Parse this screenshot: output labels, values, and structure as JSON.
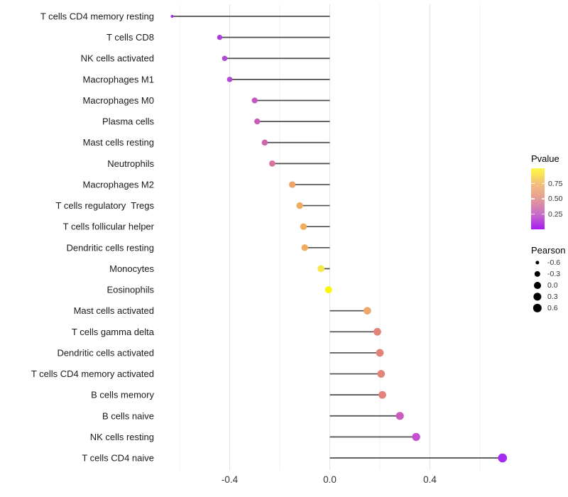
{
  "chart_data": {
    "type": "scatter",
    "variant": "lollipop",
    "title": "",
    "xlabel": "",
    "ylabel": "",
    "x_axis": {
      "tick_labels": [
        "-0.4",
        "0.0",
        "0.4"
      ],
      "tick_values": [
        -0.4,
        0.0,
        0.4
      ],
      "gridline_values": [
        -0.6,
        -0.4,
        -0.2,
        0.0,
        0.2,
        0.4,
        0.6
      ],
      "range": [
        -0.69,
        0.77
      ]
    },
    "points": [
      {
        "label": "T cells CD4 memory resting",
        "pearson": -0.63,
        "color": "#A428EE"
      },
      {
        "label": "T cells CD8",
        "pearson": -0.44,
        "color": "#AC3CDC"
      },
      {
        "label": "NK cells activated",
        "pearson": -0.42,
        "color": "#B246D8"
      },
      {
        "label": "Macrophages M1",
        "pearson": -0.4,
        "color": "#B348D7"
      },
      {
        "label": "Macrophages M0",
        "pearson": -0.3,
        "color": "#C557C0"
      },
      {
        "label": "Plasma cells",
        "pearson": -0.29,
        "color": "#C95CB8"
      },
      {
        "label": "Mast cells resting",
        "pearson": -0.26,
        "color": "#CD64AE"
      },
      {
        "label": "Neutrophils",
        "pearson": -0.23,
        "color": "#D8739F"
      },
      {
        "label": "Macrophages M2",
        "pearson": -0.15,
        "color": "#ECA366"
      },
      {
        "label": "T cells regulatory  Tregs",
        "pearson": -0.12,
        "color": "#EFAA62"
      },
      {
        "label": "T cells follicular helper",
        "pearson": -0.105,
        "color": "#F0AE5D"
      },
      {
        "label": "Dendritic cells resting",
        "pearson": -0.1,
        "color": "#F0AE5D"
      },
      {
        "label": "Monocytes",
        "pearson": -0.035,
        "color": "#F3E74A"
      },
      {
        "label": "Eosinophils",
        "pearson": -0.005,
        "color": "#FBF807"
      },
      {
        "label": "Mast cells activated",
        "pearson": 0.15,
        "color": "#EDA76B"
      },
      {
        "label": "T cells gamma delta",
        "pearson": 0.19,
        "color": "#E18478"
      },
      {
        "label": "Dendritic cells activated",
        "pearson": 0.2,
        "color": "#E28379"
      },
      {
        "label": "T cells CD4 memory activated",
        "pearson": 0.205,
        "color": "#E28379"
      },
      {
        "label": "B cells memory",
        "pearson": 0.21,
        "color": "#E1837B"
      },
      {
        "label": "B cells naive",
        "pearson": 0.28,
        "color": "#CC5BC0"
      },
      {
        "label": "NK cells resting",
        "pearson": 0.345,
        "color": "#C44FD2"
      },
      {
        "label": "T cells CD4 naive",
        "pearson": 0.69,
        "color": "#A32CF0"
      }
    ],
    "legends": {
      "pvalue": {
        "title": "Pvalue",
        "tick_labels": [
          "0.75",
          "0.50",
          "0.25"
        ],
        "tick_values": [
          0.75,
          0.5,
          0.25
        ],
        "range": [
          0,
          1
        ],
        "gradient_stops": [
          {
            "at": 0.0,
            "color": "#A91AF2"
          },
          {
            "at": 0.25,
            "color": "#C86DC9"
          },
          {
            "at": 0.5,
            "color": "#E59B95"
          },
          {
            "at": 0.75,
            "color": "#F2C17B"
          },
          {
            "at": 0.92,
            "color": "#FAE84F"
          },
          {
            "at": 1.0,
            "color": "#FCF64F"
          }
        ]
      },
      "pearson": {
        "title": "Pearson",
        "entries": [
          {
            "label": "-0.6",
            "value": -0.6
          },
          {
            "label": "-0.3",
            "value": -0.3
          },
          {
            "label": "0.0",
            "value": 0.0
          },
          {
            "label": "0.3",
            "value": 0.3
          },
          {
            "label": "0.6",
            "value": 0.6
          }
        ]
      }
    },
    "colors": {
      "stick": "#4d4d4d",
      "grid_major": "#e4e4e4",
      "grid_minor": "#f0f0f0",
      "axis_text": "#333333",
      "category_text": "#1a1a1a",
      "legend_dot": "#000000"
    },
    "size_range": [
      -0.63,
      0.69
    ]
  }
}
